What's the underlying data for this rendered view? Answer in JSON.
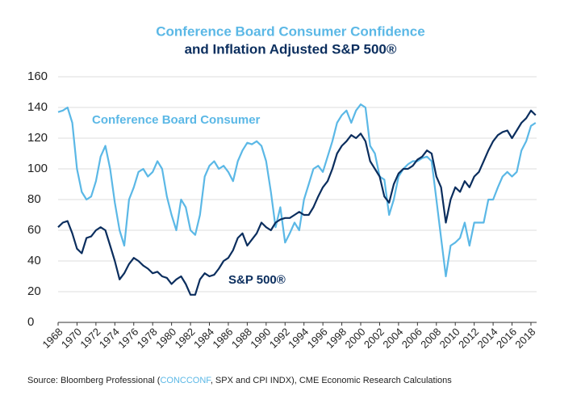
{
  "chart_data": {
    "type": "line",
    "title": "Conference Board Consumer Confidence",
    "subtitle": "and Inflation Adjusted S&P 500®",
    "title_color": "#5bb8e6",
    "subtitle_color": "#0b2e5e",
    "annotations": [
      "Conference Board Consumer",
      "S&P 500®"
    ],
    "source": [
      "Source: Bloomberg Professional (",
      "CONCCONF",
      ", SPX and CPI INDX), CME Economic Research Calculations"
    ],
    "source_highlight_color": "#5bb8e6",
    "x": [
      1968,
      1968.5,
      1969,
      1969.5,
      1970,
      1970.5,
      1971,
      1971.5,
      1972,
      1972.5,
      1973,
      1973.5,
      1974,
      1974.5,
      1975,
      1975.5,
      1976,
      1976.5,
      1977,
      1977.5,
      1978,
      1978.5,
      1979,
      1979.5,
      1980,
      1980.5,
      1981,
      1981.5,
      1982,
      1982.5,
      1983,
      1983.5,
      1984,
      1984.5,
      1985,
      1985.5,
      1986,
      1986.5,
      1987,
      1987.5,
      1988,
      1988.5,
      1989,
      1989.5,
      1990,
      1990.5,
      1991,
      1991.5,
      1992,
      1992.5,
      1993,
      1993.5,
      1994,
      1994.5,
      1995,
      1995.5,
      1996,
      1996.5,
      1997,
      1997.5,
      1998,
      1998.5,
      1999,
      1999.5,
      2000,
      2000.5,
      2001,
      2001.5,
      2002,
      2002.5,
      2003,
      2003.5,
      2004,
      2004.5,
      2005,
      2005.5,
      2006,
      2006.5,
      2007,
      2007.5,
      2008,
      2008.5,
      2009,
      2009.5,
      2010,
      2010.5,
      2011,
      2011.5,
      2012,
      2012.5,
      2013,
      2013.5,
      2014,
      2014.5,
      2015,
      2015.5,
      2016,
      2016.5,
      2017,
      2017.5,
      2018,
      2018.5
    ],
    "series": [
      {
        "name": "Conference Board Consumer",
        "color": "#5bb8e6",
        "values": [
          137,
          138,
          140,
          130,
          100,
          85,
          80,
          82,
          92,
          108,
          115,
          100,
          78,
          60,
          50,
          80,
          88,
          98,
          100,
          95,
          98,
          105,
          100,
          82,
          70,
          60,
          80,
          75,
          60,
          57,
          70,
          95,
          102,
          105,
          100,
          102,
          98,
          92,
          105,
          112,
          117,
          116,
          118,
          115,
          105,
          85,
          62,
          75,
          52,
          58,
          65,
          60,
          80,
          90,
          100,
          102,
          98,
          108,
          118,
          130,
          135,
          138,
          130,
          138,
          142,
          140,
          115,
          110,
          95,
          93,
          70,
          80,
          95,
          100,
          103,
          105,
          105,
          107,
          108,
          105,
          80,
          55,
          30,
          50,
          52,
          55,
          65,
          50,
          65,
          65,
          65,
          80,
          80,
          88,
          95,
          98,
          95,
          98,
          112,
          118,
          128,
          130
        ]
      },
      {
        "name": "S&P 500®",
        "color": "#0b2e5e",
        "values": [
          62,
          65,
          66,
          58,
          48,
          45,
          55,
          56,
          60,
          62,
          60,
          50,
          40,
          28,
          32,
          38,
          42,
          40,
          37,
          35,
          32,
          33,
          30,
          29,
          25,
          28,
          30,
          25,
          18,
          18,
          28,
          32,
          30,
          31,
          35,
          40,
          42,
          47,
          55,
          58,
          50,
          54,
          58,
          65,
          62,
          60,
          65,
          67,
          68,
          68,
          70,
          72,
          70,
          70,
          75,
          82,
          88,
          92,
          100,
          110,
          115,
          118,
          122,
          120,
          123,
          118,
          105,
          100,
          95,
          82,
          78,
          90,
          97,
          100,
          100,
          102,
          106,
          108,
          112,
          110,
          95,
          88,
          65,
          80,
          88,
          85,
          92,
          88,
          95,
          98,
          105,
          112,
          118,
          122,
          124,
          125,
          120,
          125,
          130,
          133,
          138,
          135
        ]
      }
    ],
    "xlim": [
      1968,
      2018.6
    ],
    "xticks": [
      1968,
      1970,
      1972,
      1974,
      1976,
      1978,
      1980,
      1982,
      1984,
      1986,
      1988,
      1990,
      1992,
      1994,
      1996,
      1998,
      2000,
      2002,
      2004,
      2006,
      2008,
      2010,
      2012,
      2014,
      2016,
      2018
    ],
    "ylim": [
      0,
      160
    ],
    "yticks": [
      0,
      20,
      40,
      60,
      80,
      100,
      120,
      140,
      160
    ],
    "grid": true
  }
}
